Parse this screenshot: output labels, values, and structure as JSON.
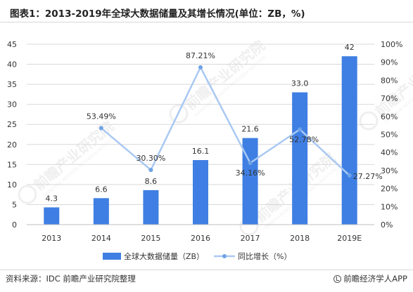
{
  "header": {
    "title": "图表1：2013-2019年全球大数据储量及其增长情况(单位：ZB，%)"
  },
  "footer": {
    "source": "资料来源：IDC 前瞻产业研究院整理",
    "brand": "前瞻经济学人APP"
  },
  "watermark": {
    "text": "前瞻产业研究院",
    "subtext": "QIANZHAN INDUSTRY RESEARCH INSTITUTE"
  },
  "colors": {
    "bar": "#3f7fe3",
    "line": "#a9c9f2",
    "marker": "#6fa3e6",
    "grid": "#d9d9d9",
    "axis_text": "#333333"
  },
  "chart_data": {
    "type": "bar",
    "categories": [
      "2013",
      "2014",
      "2015",
      "2016",
      "2017",
      "2018",
      "2019E"
    ],
    "series": [
      {
        "name": "全球大数据储量（ZB）",
        "type": "bar",
        "axis": "left",
        "values": [
          4.3,
          6.6,
          8.6,
          16.1,
          21.6,
          33.0,
          42
        ],
        "labels": [
          "4.3",
          "6.6",
          "8.6",
          "16.1",
          "21.6",
          "33.0",
          "42"
        ]
      },
      {
        "name": "同比增长（%）",
        "type": "line",
        "axis": "right",
        "values": [
          null,
          53.49,
          30.3,
          87.21,
          34.16,
          52.78,
          27.27
        ],
        "labels": [
          "",
          "53.49%",
          "30.30%",
          "87.21%",
          "34.16%",
          "52.78%",
          "27.27%"
        ]
      }
    ],
    "y_left": {
      "min": 0,
      "max": 45,
      "ticks": [
        "0",
        "5",
        "10",
        "15",
        "20",
        "25",
        "30",
        "35",
        "40",
        "45"
      ]
    },
    "y_right": {
      "min": 0,
      "max": 100,
      "ticks": [
        "0%",
        "10%",
        "20%",
        "30%",
        "40%",
        "50%",
        "60%",
        "70%",
        "80%",
        "90%",
        "100%"
      ]
    },
    "grid": true,
    "legend_position": "bottom"
  }
}
